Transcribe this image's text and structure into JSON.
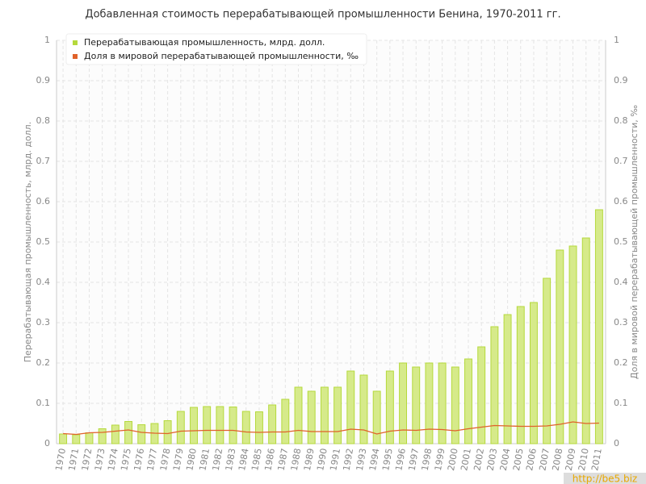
{
  "chart_data": {
    "type": "bar-line",
    "title": "Добавленная стоимость перерабатывающей промышленности Бенина, 1970-2011 гг.",
    "y_label": "Перерабатывающая промышленность, млрд. долл.",
    "y2_label": "Доля в мировой перерабатывающей промышленности, ‰",
    "watermark": "http://be5.biz",
    "categories": [
      "1970",
      "1971",
      "1972",
      "1973",
      "1974",
      "1975",
      "1976",
      "1977",
      "1978",
      "1979",
      "1980",
      "1981",
      "1982",
      "1983",
      "1984",
      "1985",
      "1986",
      "1987",
      "1988",
      "1989",
      "1990",
      "1991",
      "1992",
      "1993",
      "1994",
      "1995",
      "1996",
      "1997",
      "1998",
      "1999",
      "2000",
      "2001",
      "2002",
      "2003",
      "2004",
      "2005",
      "2006",
      "2007",
      "2008",
      "2009",
      "2010",
      "2011"
    ],
    "series": [
      {
        "name": "Перерабатывающая промышленность, млрд. долл.",
        "type": "bar",
        "axis": "y",
        "color": "#b5d93c",
        "values": [
          0.024,
          0.022,
          0.027,
          0.037,
          0.046,
          0.055,
          0.047,
          0.05,
          0.057,
          0.08,
          0.09,
          0.092,
          0.092,
          0.091,
          0.08,
          0.079,
          0.096,
          0.11,
          0.14,
          0.13,
          0.14,
          0.14,
          0.18,
          0.17,
          0.13,
          0.18,
          0.2,
          0.19,
          0.2,
          0.2,
          0.19,
          0.21,
          0.24,
          0.29,
          0.32,
          0.34,
          0.35,
          0.41,
          0.48,
          0.49,
          0.51,
          0.58
        ]
      },
      {
        "name": "Доля в мировой перерабатывающей промышленности, ‰",
        "type": "line",
        "axis": "y2",
        "color": "#e0622a",
        "values": [
          0.025,
          0.023,
          0.027,
          0.028,
          0.031,
          0.034,
          0.028,
          0.026,
          0.025,
          0.031,
          0.032,
          0.033,
          0.033,
          0.033,
          0.029,
          0.028,
          0.029,
          0.029,
          0.033,
          0.03,
          0.03,
          0.03,
          0.036,
          0.034,
          0.024,
          0.031,
          0.034,
          0.033,
          0.036,
          0.035,
          0.032,
          0.037,
          0.041,
          0.045,
          0.044,
          0.043,
          0.043,
          0.044,
          0.048,
          0.054,
          0.05,
          0.051
        ]
      }
    ],
    "ylim": [
      0,
      1
    ],
    "yticks": [
      0,
      0.1,
      0.2,
      0.3,
      0.4,
      0.5,
      0.6,
      0.7,
      0.8,
      0.9,
      1
    ],
    "y2lim": [
      0,
      1
    ],
    "y2ticks": [
      0,
      0.1,
      0.2,
      0.3,
      0.4,
      0.5,
      0.6,
      0.7,
      0.8,
      0.9,
      1
    ],
    "grid": true,
    "legend": "top-left"
  }
}
